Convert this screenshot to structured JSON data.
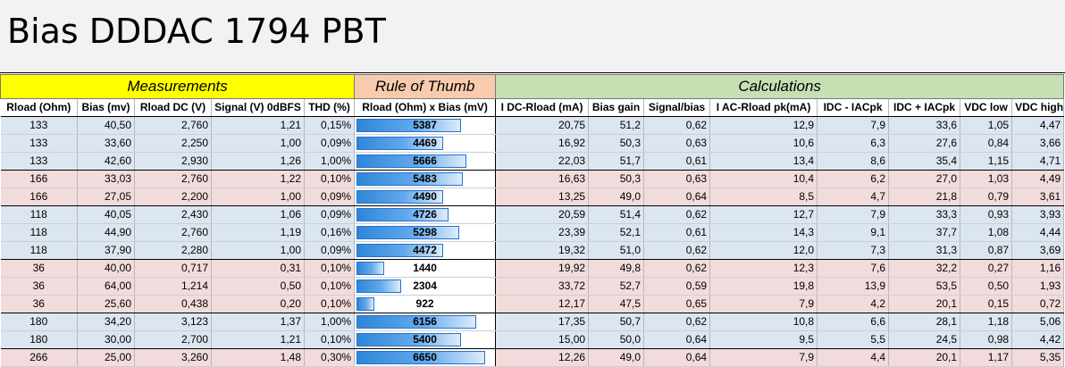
{
  "title": "Bias DDDAC 1794 PBT",
  "sections": {
    "measurements": "Measurements",
    "rule": "Rule of Thumb",
    "calculations": "Calculations"
  },
  "columns": [
    "Rload (Ohm)",
    "Bias (mv)",
    "Rload DC (V)",
    "Signal (V) 0dBFS",
    "THD (%)",
    "Rload (Ohm) x Bias (mV)",
    "I DC-Rload (mA)",
    "Bias gain",
    "Signal/bias",
    "I AC-Rload pk(mA)",
    "IDC - IACpk",
    "IDC + IACpk",
    "VDC low",
    "VDC high"
  ],
  "colors": {
    "measurements_header": "#ffff00",
    "rule_header": "#f8cbad",
    "calculations_header": "#c6e0b4",
    "row_blue": "#dce6f0",
    "row_pink": "#f2dcdb",
    "bar": "#2e86d8"
  },
  "bar_max": 7000,
  "rows": [
    {
      "group": "blue",
      "end": false,
      "rule_value": 5387,
      "cells": [
        "133",
        "40,50",
        "2,760",
        "1,21",
        "0,15%",
        "5387",
        "20,75",
        "51,2",
        "0,62",
        "12,9",
        "7,9",
        "33,6",
        "1,05",
        "4,47"
      ]
    },
    {
      "group": "blue",
      "end": false,
      "rule_value": 4469,
      "cells": [
        "133",
        "33,60",
        "2,250",
        "1,00",
        "0,09%",
        "4469",
        "16,92",
        "50,3",
        "0,63",
        "10,6",
        "6,3",
        "27,6",
        "0,84",
        "3,66"
      ]
    },
    {
      "group": "blue",
      "end": true,
      "rule_value": 5666,
      "cells": [
        "133",
        "42,60",
        "2,930",
        "1,26",
        "1,00%",
        "5666",
        "22,03",
        "51,7",
        "0,61",
        "13,4",
        "8,6",
        "35,4",
        "1,15",
        "4,71"
      ]
    },
    {
      "group": "pink",
      "end": false,
      "rule_value": 5483,
      "cells": [
        "166",
        "33,03",
        "2,760",
        "1,22",
        "0,10%",
        "5483",
        "16,63",
        "50,3",
        "0,63",
        "10,4",
        "6,2",
        "27,0",
        "1,03",
        "4,49"
      ]
    },
    {
      "group": "pink",
      "end": true,
      "rule_value": 4490,
      "cells": [
        "166",
        "27,05",
        "2,200",
        "1,00",
        "0,09%",
        "4490",
        "13,25",
        "49,0",
        "0,64",
        "8,5",
        "4,7",
        "21,8",
        "0,79",
        "3,61"
      ]
    },
    {
      "group": "blue",
      "end": false,
      "rule_value": 4726,
      "cells": [
        "118",
        "40,05",
        "2,430",
        "1,06",
        "0,09%",
        "4726",
        "20,59",
        "51,4",
        "0,62",
        "12,7",
        "7,9",
        "33,3",
        "0,93",
        "3,93"
      ]
    },
    {
      "group": "blue",
      "end": false,
      "rule_value": 5298,
      "cells": [
        "118",
        "44,90",
        "2,760",
        "1,19",
        "0,16%",
        "5298",
        "23,39",
        "52,1",
        "0,61",
        "14,3",
        "9,1",
        "37,7",
        "1,08",
        "4,44"
      ]
    },
    {
      "group": "blue",
      "end": true,
      "rule_value": 4472,
      "cells": [
        "118",
        "37,90",
        "2,280",
        "1,00",
        "0,09%",
        "4472",
        "19,32",
        "51,0",
        "0,62",
        "12,0",
        "7,3",
        "31,3",
        "0,87",
        "3,69"
      ]
    },
    {
      "group": "pink",
      "end": false,
      "rule_value": 1440,
      "cells": [
        "36",
        "40,00",
        "0,717",
        "0,31",
        "0,10%",
        "1440",
        "19,92",
        "49,8",
        "0,62",
        "12,3",
        "7,6",
        "32,2",
        "0,27",
        "1,16"
      ]
    },
    {
      "group": "pink",
      "end": false,
      "rule_value": 2304,
      "cells": [
        "36",
        "64,00",
        "1,214",
        "0,50",
        "0,10%",
        "2304",
        "33,72",
        "52,7",
        "0,59",
        "19,8",
        "13,9",
        "53,5",
        "0,50",
        "1,93"
      ]
    },
    {
      "group": "pink",
      "end": true,
      "rule_value": 922,
      "cells": [
        "36",
        "25,60",
        "0,438",
        "0,20",
        "0,10%",
        "922",
        "12,17",
        "47,5",
        "0,65",
        "7,9",
        "4,2",
        "20,1",
        "0,15",
        "0,72"
      ]
    },
    {
      "group": "blue",
      "end": false,
      "rule_value": 6156,
      "cells": [
        "180",
        "34,20",
        "3,123",
        "1,37",
        "1,00%",
        "6156",
        "17,35",
        "50,7",
        "0,62",
        "10,8",
        "6,6",
        "28,1",
        "1,18",
        "5,06"
      ]
    },
    {
      "group": "blue",
      "end": true,
      "rule_value": 5400,
      "cells": [
        "180",
        "30,00",
        "2,700",
        "1,21",
        "0,10%",
        "5400",
        "15,00",
        "50,0",
        "0,64",
        "9,5",
        "5,5",
        "24,5",
        "0,98",
        "4,42"
      ]
    },
    {
      "group": "pink",
      "end": false,
      "rule_value": 6650,
      "cells": [
        "266",
        "25,00",
        "3,260",
        "1,48",
        "0,30%",
        "6650",
        "12,26",
        "49,0",
        "0,64",
        "7,9",
        "4,4",
        "20,1",
        "1,17",
        "5,35"
      ]
    }
  ]
}
